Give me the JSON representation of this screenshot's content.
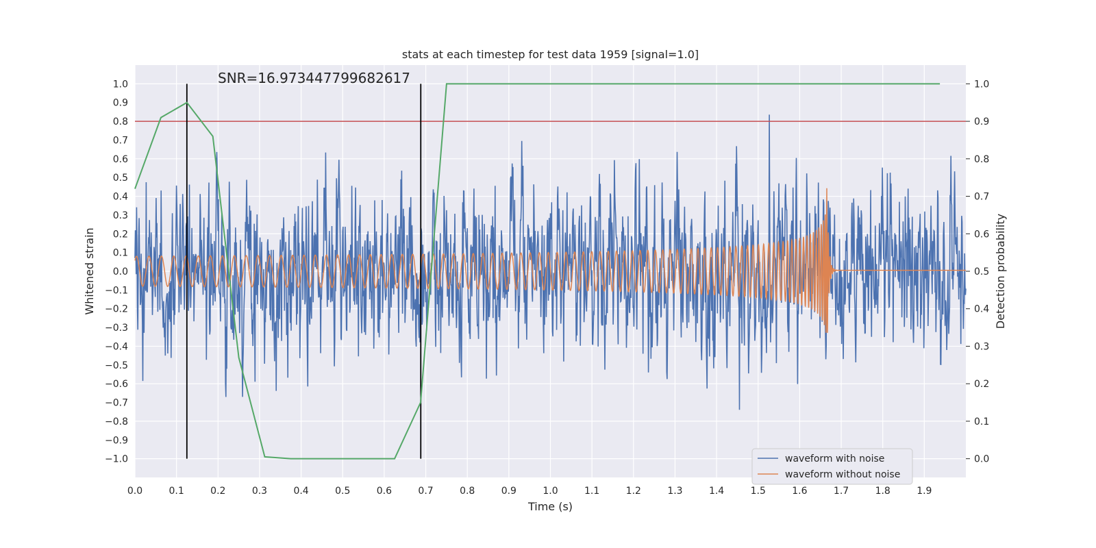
{
  "chart_data": {
    "type": "line",
    "title": "stats at each timestep for test data 1959 [signal=1.0]",
    "xlabel": "Time (s)",
    "ylabel_left": "Whitened strain",
    "ylabel_right": "Detection probability",
    "xlim": [
      0.0,
      2.0
    ],
    "ylim_left": [
      -1.1,
      1.1
    ],
    "ylim_right": [
      -0.05,
      1.05
    ],
    "x_ticks": [
      "0.0",
      "0.1",
      "0.2",
      "0.3",
      "0.4",
      "0.5",
      "0.6",
      "0.7",
      "0.8",
      "0.9",
      "1.0",
      "1.1",
      "1.2",
      "1.3",
      "1.4",
      "1.5",
      "1.6",
      "1.7",
      "1.8",
      "1.9"
    ],
    "y_ticks_left": [
      "1.0",
      "0.9",
      "0.8",
      "0.7",
      "0.6",
      "0.5",
      "0.4",
      "0.3",
      "0.2",
      "0.1",
      "0.0",
      "-0.1",
      "-0.2",
      "-0.3",
      "-0.4",
      "-0.5",
      "-0.6",
      "-0.7",
      "-0.8",
      "-0.9",
      "-1.0"
    ],
    "y_ticks_right": [
      "1.0",
      "0.9",
      "0.8",
      "0.7",
      "0.6",
      "0.5",
      "0.4",
      "0.3",
      "0.2",
      "0.1",
      "0.0"
    ],
    "annotation": "SNR=16.973447799682617",
    "threshold_right": 0.9,
    "vertical_lines_x": [
      0.125,
      0.688
    ],
    "series": [
      {
        "name": "waveform with noise",
        "color": "#4c72b0",
        "axis": "left",
        "style": "noisy waveform, amplitude up to about ±1.0 over 0.0–2.0 s"
      },
      {
        "name": "waveform without noise",
        "color": "#dd8452",
        "axis": "left",
        "style": "chirp: amplitude ~0.08 growing to ~0.55 at merger (1.665 s), then ringdown to 0"
      },
      {
        "name": "detection probability",
        "color": "#55a868",
        "axis": "right",
        "x": [
          0.0,
          0.0625,
          0.125,
          0.1875,
          0.25,
          0.3125,
          0.375,
          0.4375,
          0.5,
          0.5625,
          0.625,
          0.6875,
          0.75,
          0.8125,
          0.875,
          0.9375,
          1.0,
          1.0625,
          1.125,
          1.1875,
          1.25,
          1.3125,
          1.375,
          1.4375,
          1.5,
          1.5625,
          1.625,
          1.6875,
          1.75,
          1.8125,
          1.875,
          1.9375
        ],
        "values": [
          0.72,
          0.91,
          0.95,
          0.86,
          0.27,
          0.005,
          0.0,
          0.0,
          0.0,
          0.0,
          0.0,
          0.15,
          1.0,
          1.0,
          1.0,
          1.0,
          1.0,
          1.0,
          1.0,
          1.0,
          1.0,
          1.0,
          1.0,
          1.0,
          1.0,
          1.0,
          1.0,
          1.0,
          1.0,
          1.0,
          1.0,
          1.0
        ]
      }
    ],
    "legend": {
      "location": "lower-right",
      "entries": [
        {
          "label": "waveform with noise",
          "color": "#4c72b0"
        },
        {
          "label": "waveform without noise",
          "color": "#dd8452"
        }
      ]
    },
    "threshold_color": "#c44e52",
    "vline_color": "#000000"
  }
}
